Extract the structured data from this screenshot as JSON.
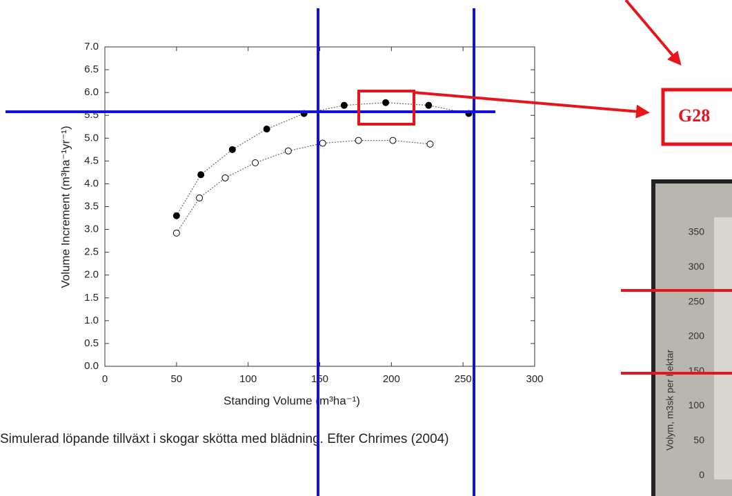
{
  "chart_data": {
    "type": "scatter",
    "x_label": "Standing Volume (m³ha⁻¹)",
    "y_label": "Volume Increment (m³ha⁻¹yr⁻¹)",
    "xlim": [
      0,
      300
    ],
    "xticks": [
      0,
      50,
      100,
      150,
      200,
      250,
      300
    ],
    "ylim": [
      0,
      7
    ],
    "yticks": [
      {
        "value": 0,
        "label": "0.0"
      },
      0.5,
      {
        "value": 1,
        "label": "1.0"
      },
      1.5,
      {
        "value": 2,
        "label": "2.0"
      },
      2.5,
      {
        "value": 3,
        "label": "3.0"
      },
      3.5,
      {
        "value": 4,
        "label": "4.0"
      },
      4.5,
      {
        "value": 5,
        "label": "5.0"
      },
      5.5,
      {
        "value": 6,
        "label": "6.0"
      },
      6.5,
      {
        "value": 7,
        "label": "7.0"
      }
    ],
    "series": [
      {
        "color": "#000000",
        "filled": true,
        "x": [
          50,
          67,
          89,
          113,
          139,
          167,
          196,
          226,
          254
        ],
        "values": [
          3.3,
          4.2,
          4.75,
          5.2,
          5.54,
          5.72,
          5.78,
          5.72,
          5.54
        ]
      },
      {
        "color": "#000000",
        "filled": false,
        "x": [
          50,
          66,
          84,
          105,
          128,
          152,
          177,
          201,
          227
        ],
        "values": [
          2.92,
          3.69,
          4.13,
          4.46,
          4.72,
          4.89,
          4.95,
          4.95,
          4.87
        ]
      }
    ]
  },
  "caption": "Simulerad löpande tillväxt i skogar skötta med blädning. Efter Chrimes (2004)",
  "annotation": {
    "label": "G28"
  },
  "photo": {
    "y_label": "Volym, m3sk per hektar",
    "yticks": [
      "350",
      "300",
      "250",
      "200",
      "150",
      "100",
      "50",
      "0"
    ]
  }
}
